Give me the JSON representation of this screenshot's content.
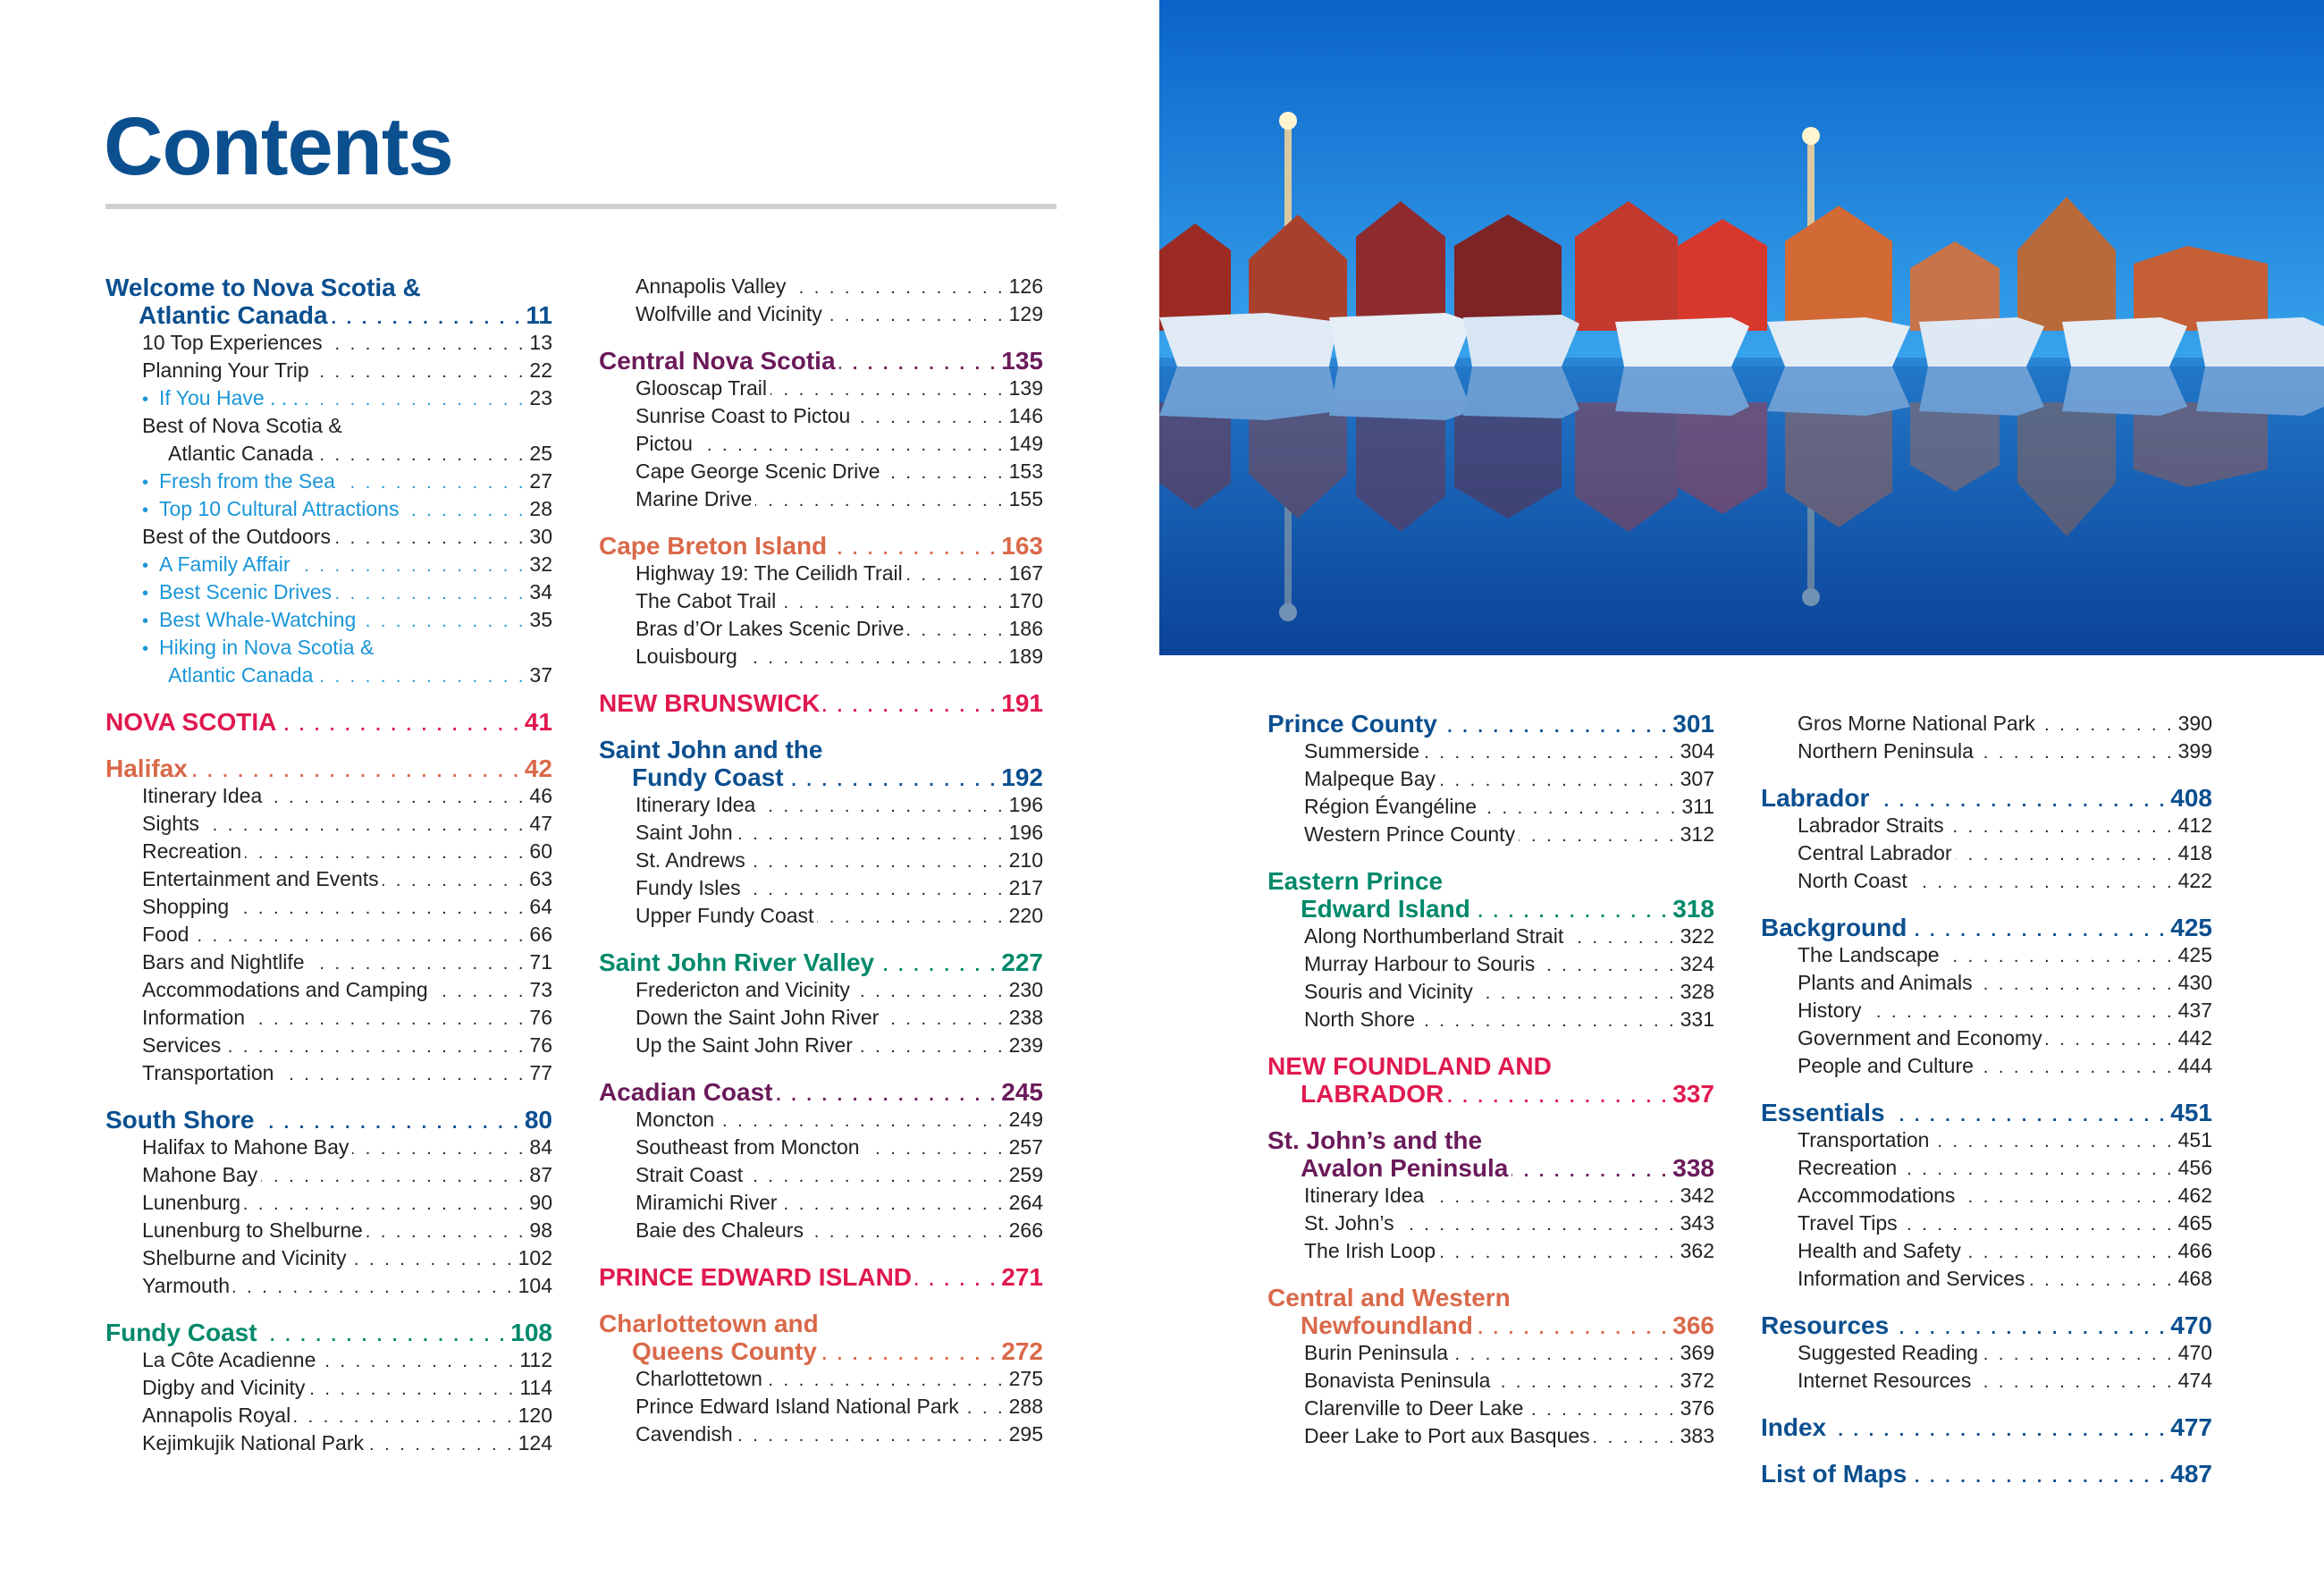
{
  "page_title": "Contents",
  "colors": {
    "blue": "#0b4f8f",
    "purple": "#6b1a5a",
    "orange": "#d9694a",
    "red": "#e0194f",
    "teal": "#00896b",
    "bullet": "#1a96d8"
  },
  "photo": {
    "subject": "harbour-sheds-and-boats-at-dusk"
  },
  "columns": [
    [
      {
        "type": "h",
        "lines": [
          "Welcome to Nova Scotia &",
          "Atlantic Canada"
        ],
        "page": "11",
        "color": "blue"
      },
      {
        "type": "i",
        "lines": [
          "10 Top Experiences"
        ],
        "page": "13"
      },
      {
        "type": "i",
        "lines": [
          "Planning Your Trip"
        ],
        "page": "22"
      },
      {
        "type": "b",
        "lines": [
          "If You Have . . ."
        ],
        "page": "23"
      },
      {
        "type": "i",
        "lines": [
          "Best of Nova Scotia &",
          "Atlantic Canada"
        ],
        "page": "25"
      },
      {
        "type": "b",
        "lines": [
          "Fresh from the Sea"
        ],
        "page": "27"
      },
      {
        "type": "b",
        "lines": [
          "Top 10 Cultural Attractions"
        ],
        "page": "28"
      },
      {
        "type": "i",
        "lines": [
          "Best of the Outdoors"
        ],
        "page": "30"
      },
      {
        "type": "b",
        "lines": [
          "A Family Affair"
        ],
        "page": "32"
      },
      {
        "type": "b",
        "lines": [
          "Best Scenic Drives"
        ],
        "page": "34"
      },
      {
        "type": "b",
        "lines": [
          "Best Whale-Watching"
        ],
        "page": "35"
      },
      {
        "type": "b",
        "lines": [
          "Hiking in Nova Scotia &",
          "Atlantic Canada"
        ],
        "page": "37"
      },
      {
        "type": "h",
        "lines": [
          "NOVA SCOTIA"
        ],
        "page": "41",
        "color": "red"
      },
      {
        "type": "h",
        "lines": [
          "Halifax"
        ],
        "page": "42",
        "color": "orange"
      },
      {
        "type": "i",
        "lines": [
          "Itinerary Idea"
        ],
        "page": "46"
      },
      {
        "type": "i",
        "lines": [
          "Sights"
        ],
        "page": "47"
      },
      {
        "type": "i",
        "lines": [
          "Recreation"
        ],
        "page": "60"
      },
      {
        "type": "i",
        "lines": [
          "Entertainment and Events"
        ],
        "page": "63"
      },
      {
        "type": "i",
        "lines": [
          "Shopping"
        ],
        "page": "64"
      },
      {
        "type": "i",
        "lines": [
          "Food"
        ],
        "page": "66"
      },
      {
        "type": "i",
        "lines": [
          "Bars and Nightlife"
        ],
        "page": "71"
      },
      {
        "type": "i",
        "lines": [
          "Accommodations and Camping"
        ],
        "page": "73"
      },
      {
        "type": "i",
        "lines": [
          "Information"
        ],
        "page": "76"
      },
      {
        "type": "i",
        "lines": [
          "Services"
        ],
        "page": "76"
      },
      {
        "type": "i",
        "lines": [
          "Transportation"
        ],
        "page": "77"
      },
      {
        "type": "h",
        "lines": [
          "South Shore"
        ],
        "page": "80",
        "color": "blue"
      },
      {
        "type": "i",
        "lines": [
          "Halifax to Mahone Bay"
        ],
        "page": "84"
      },
      {
        "type": "i",
        "lines": [
          "Mahone Bay"
        ],
        "page": "87"
      },
      {
        "type": "i",
        "lines": [
          "Lunenburg"
        ],
        "page": "90"
      },
      {
        "type": "i",
        "lines": [
          "Lunenburg to Shelburne"
        ],
        "page": "98"
      },
      {
        "type": "i",
        "lines": [
          "Shelburne and Vicinity"
        ],
        "page": "102"
      },
      {
        "type": "i",
        "lines": [
          "Yarmouth"
        ],
        "page": "104"
      },
      {
        "type": "h",
        "lines": [
          "Fundy Coast"
        ],
        "page": "108",
        "color": "teal"
      },
      {
        "type": "i",
        "lines": [
          "La Côte Acadienne"
        ],
        "page": "112"
      },
      {
        "type": "i",
        "lines": [
          "Digby and Vicinity"
        ],
        "page": "114"
      },
      {
        "type": "i",
        "lines": [
          "Annapolis Royal"
        ],
        "page": "120"
      },
      {
        "type": "i",
        "lines": [
          "Kejimkujik National Park"
        ],
        "page": "124"
      }
    ],
    [
      {
        "type": "i",
        "lines": [
          "Annapolis Valley"
        ],
        "page": "126"
      },
      {
        "type": "i",
        "lines": [
          "Wolfville and Vicinity"
        ],
        "page": "129"
      },
      {
        "type": "h",
        "lines": [
          "Central Nova Scotia"
        ],
        "page": "135",
        "color": "purple"
      },
      {
        "type": "i",
        "lines": [
          "Glooscap Trail"
        ],
        "page": "139"
      },
      {
        "type": "i",
        "lines": [
          "Sunrise Coast to Pictou"
        ],
        "page": "146"
      },
      {
        "type": "i",
        "lines": [
          "Pictou"
        ],
        "page": "149"
      },
      {
        "type": "i",
        "lines": [
          "Cape George Scenic Drive"
        ],
        "page": "153"
      },
      {
        "type": "i",
        "lines": [
          "Marine Drive"
        ],
        "page": "155"
      },
      {
        "type": "h",
        "lines": [
          "Cape Breton Island"
        ],
        "page": "163",
        "color": "orange"
      },
      {
        "type": "i",
        "lines": [
          "Highway 19: The Ceilidh Trail"
        ],
        "page": "167"
      },
      {
        "type": "i",
        "lines": [
          "The Cabot Trail"
        ],
        "page": "170"
      },
      {
        "type": "i",
        "lines": [
          "Bras d’Or Lakes Scenic Drive"
        ],
        "page": "186"
      },
      {
        "type": "i",
        "lines": [
          "Louisbourg"
        ],
        "page": "189"
      },
      {
        "type": "h",
        "lines": [
          "NEW BRUNSWICK"
        ],
        "page": "191",
        "color": "red"
      },
      {
        "type": "h",
        "lines": [
          "Saint John and the",
          "Fundy Coast"
        ],
        "page": "192",
        "color": "blue"
      },
      {
        "type": "i",
        "lines": [
          "Itinerary Idea"
        ],
        "page": "196"
      },
      {
        "type": "i",
        "lines": [
          "Saint John"
        ],
        "page": "196"
      },
      {
        "type": "i",
        "lines": [
          "St. Andrews"
        ],
        "page": "210"
      },
      {
        "type": "i",
        "lines": [
          "Fundy Isles"
        ],
        "page": "217"
      },
      {
        "type": "i",
        "lines": [
          "Upper Fundy Coast"
        ],
        "page": "220"
      },
      {
        "type": "h",
        "lines": [
          "Saint John River Valley"
        ],
        "page": "227",
        "color": "teal"
      },
      {
        "type": "i",
        "lines": [
          "Fredericton and Vicinity"
        ],
        "page": "230"
      },
      {
        "type": "i",
        "lines": [
          "Down the Saint John River"
        ],
        "page": "238"
      },
      {
        "type": "i",
        "lines": [
          "Up the Saint John River"
        ],
        "page": "239"
      },
      {
        "type": "h",
        "lines": [
          "Acadian Coast"
        ],
        "page": "245",
        "color": "purple"
      },
      {
        "type": "i",
        "lines": [
          "Moncton"
        ],
        "page": "249"
      },
      {
        "type": "i",
        "lines": [
          "Southeast from Moncton"
        ],
        "page": "257"
      },
      {
        "type": "i",
        "lines": [
          "Strait Coast"
        ],
        "page": "259"
      },
      {
        "type": "i",
        "lines": [
          "Miramichi River"
        ],
        "page": "264"
      },
      {
        "type": "i",
        "lines": [
          "Baie des Chaleurs"
        ],
        "page": "266"
      },
      {
        "type": "h",
        "lines": [
          "PRINCE EDWARD ISLAND"
        ],
        "page": "271",
        "color": "red"
      },
      {
        "type": "h",
        "lines": [
          "Charlottetown and",
          "Queens County"
        ],
        "page": "272",
        "color": "orange"
      },
      {
        "type": "i",
        "lines": [
          "Charlottetown"
        ],
        "page": "275"
      },
      {
        "type": "i",
        "lines": [
          "Prince Edward Island National Park"
        ],
        "page": "288"
      },
      {
        "type": "i",
        "lines": [
          "Cavendish"
        ],
        "page": "295"
      }
    ],
    [
      {
        "type": "h",
        "lines": [
          "Prince County"
        ],
        "page": "301",
        "color": "blue"
      },
      {
        "type": "i",
        "lines": [
          "Summerside"
        ],
        "page": "304"
      },
      {
        "type": "i",
        "lines": [
          "Malpeque Bay"
        ],
        "page": "307"
      },
      {
        "type": "i",
        "lines": [
          "Région Évangéline"
        ],
        "page": "311"
      },
      {
        "type": "i",
        "lines": [
          "Western Prince County"
        ],
        "page": "312"
      },
      {
        "type": "h",
        "lines": [
          "Eastern Prince",
          "Edward Island"
        ],
        "page": "318",
        "color": "teal"
      },
      {
        "type": "i",
        "lines": [
          "Along Northumberland Strait"
        ],
        "page": "322"
      },
      {
        "type": "i",
        "lines": [
          "Murray Harbour to Souris"
        ],
        "page": "324"
      },
      {
        "type": "i",
        "lines": [
          "Souris and Vicinity"
        ],
        "page": "328"
      },
      {
        "type": "i",
        "lines": [
          "North Shore"
        ],
        "page": "331"
      },
      {
        "type": "h",
        "lines": [
          "NEW FOUNDLAND AND",
          "LABRADOR"
        ],
        "page": "337",
        "color": "red"
      },
      {
        "type": "h",
        "lines": [
          "St. John’s and the",
          "Avalon Peninsula"
        ],
        "page": "338",
        "color": "purple"
      },
      {
        "type": "i",
        "lines": [
          "Itinerary Idea"
        ],
        "page": "342"
      },
      {
        "type": "i",
        "lines": [
          "St. John’s"
        ],
        "page": "343"
      },
      {
        "type": "i",
        "lines": [
          "The Irish Loop"
        ],
        "page": "362"
      },
      {
        "type": "h",
        "lines": [
          "Central and Western",
          "Newfoundland"
        ],
        "page": "366",
        "color": "orange"
      },
      {
        "type": "i",
        "lines": [
          "Burin Peninsula"
        ],
        "page": "369"
      },
      {
        "type": "i",
        "lines": [
          "Bonavista Peninsula"
        ],
        "page": "372"
      },
      {
        "type": "i",
        "lines": [
          "Clarenville to Deer Lake"
        ],
        "page": "376"
      },
      {
        "type": "i",
        "lines": [
          "Deer Lake to Port aux Basques"
        ],
        "page": "383"
      }
    ],
    [
      {
        "type": "i",
        "lines": [
          "Gros Morne National Park"
        ],
        "page": "390"
      },
      {
        "type": "i",
        "lines": [
          "Northern Peninsula"
        ],
        "page": "399"
      },
      {
        "type": "h",
        "lines": [
          "Labrador"
        ],
        "page": "408",
        "color": "blue"
      },
      {
        "type": "i",
        "lines": [
          "Labrador Straits"
        ],
        "page": "412"
      },
      {
        "type": "i",
        "lines": [
          "Central Labrador"
        ],
        "page": "418"
      },
      {
        "type": "i",
        "lines": [
          "North Coast"
        ],
        "page": "422"
      },
      {
        "type": "h",
        "lines": [
          "Background"
        ],
        "page": "425",
        "color": "blue"
      },
      {
        "type": "i",
        "lines": [
          "The Landscape"
        ],
        "page": "425"
      },
      {
        "type": "i",
        "lines": [
          "Plants and Animals"
        ],
        "page": "430"
      },
      {
        "type": "i",
        "lines": [
          "History"
        ],
        "page": "437"
      },
      {
        "type": "i",
        "lines": [
          "Government and Economy"
        ],
        "page": "442"
      },
      {
        "type": "i",
        "lines": [
          "People and Culture"
        ],
        "page": "444"
      },
      {
        "type": "h",
        "lines": [
          "Essentials"
        ],
        "page": "451",
        "color": "blue"
      },
      {
        "type": "i",
        "lines": [
          "Transportation"
        ],
        "page": "451"
      },
      {
        "type": "i",
        "lines": [
          "Recreation"
        ],
        "page": "456"
      },
      {
        "type": "i",
        "lines": [
          "Accommodations"
        ],
        "page": "462"
      },
      {
        "type": "i",
        "lines": [
          "Travel Tips"
        ],
        "page": "465"
      },
      {
        "type": "i",
        "lines": [
          "Health and Safety"
        ],
        "page": "466"
      },
      {
        "type": "i",
        "lines": [
          "Information and Services"
        ],
        "page": "468"
      },
      {
        "type": "h",
        "lines": [
          "Resources"
        ],
        "page": "470",
        "color": "blue"
      },
      {
        "type": "i",
        "lines": [
          "Suggested Reading"
        ],
        "page": "470"
      },
      {
        "type": "i",
        "lines": [
          "Internet Resources"
        ],
        "page": "474"
      },
      {
        "type": "h",
        "lines": [
          "Index"
        ],
        "page": "477",
        "color": "blue"
      },
      {
        "type": "h",
        "lines": [
          "List of Maps"
        ],
        "page": "487",
        "color": "blue"
      }
    ]
  ]
}
